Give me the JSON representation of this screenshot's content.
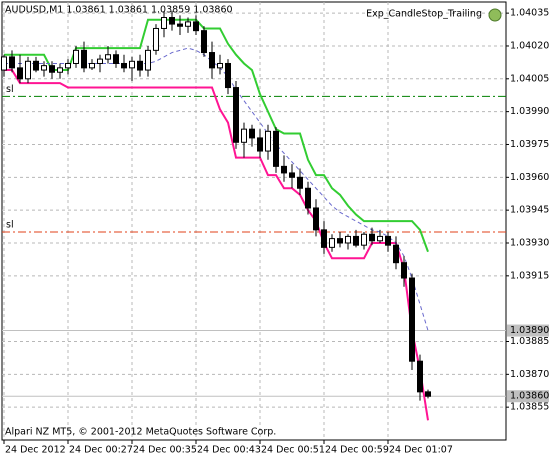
{
  "chart_data": {
    "type": "candlestick",
    "title": "AUDUSD,M1  1.03861 1.03861 1.03859 1.03860",
    "subtitle": "Exp_CandleStop_Trailing",
    "footer": "Alpari NZ MT5, © 2001-2012 MetaQuotes Software Corp.",
    "grid": true,
    "ylim": [
      1.0384,
      1.04041
    ],
    "yticks": [
      1.04035,
      {
        "value": 1.0402,
        "label": "1.04020"
      },
      1.04005,
      {
        "value": 1.0399,
        "label": "1.03990"
      },
      1.03975,
      {
        "value": 1.0396,
        "label": "1.03960"
      },
      1.03945,
      {
        "value": 1.0393,
        "label": "1.03930"
      },
      1.03915,
      1.03885,
      {
        "value": 1.0387,
        "label": "1.03870"
      },
      1.03855
    ],
    "categories": [
      "24 Dec 2012",
      null,
      null,
      null,
      null,
      null,
      null,
      null,
      "24 Dec 00:27",
      null,
      null,
      null,
      null,
      null,
      null,
      null,
      "24 Dec 00:35",
      null,
      null,
      null,
      null,
      null,
      null,
      null,
      "24 Dec 00:43",
      null,
      null,
      null,
      null,
      null,
      null,
      null,
      "24 Dec 00:51",
      null,
      null,
      null,
      null,
      null,
      null,
      null,
      "24 Dec 00:59",
      null,
      null,
      null,
      null,
      null,
      null,
      null,
      "24 Dec 01:07",
      null,
      null,
      null,
      null,
      null
    ],
    "open": [
      1.04009,
      1.04015,
      1.0401,
      1.04005,
      1.04013,
      1.04009,
      1.04011,
      1.04008,
      1.0401,
      1.04012,
      1.04018,
      1.0401,
      1.04012,
      1.04014,
      1.04016,
      1.04012,
      1.0401,
      1.04013,
      1.04009,
      1.04018,
      1.04028,
      1.04033,
      1.0403,
      1.04029,
      1.04031,
      1.04027,
      1.04017,
      1.0401,
      1.04012,
      1.04001,
      1.03976,
      1.03982,
      1.03978,
      1.03972,
      1.03981,
      1.03965,
      1.03962,
      1.0396,
      1.03955,
      1.03946,
      1.03936,
      1.03928,
      1.03932,
      1.0393,
      1.03933,
      1.03929,
      1.03934,
      1.03931,
      1.03933,
      1.03929,
      1.03921,
      1.03914,
      1.03876,
      1.03862
    ],
    "high": [
      1.04016,
      1.04018,
      1.04016,
      1.04015,
      1.04015,
      1.04013,
      1.04013,
      1.04012,
      1.04014,
      1.0402,
      1.04022,
      1.04014,
      1.04016,
      1.0402,
      1.04018,
      1.04016,
      1.04015,
      1.04016,
      1.0402,
      1.0403,
      1.04036,
      1.04036,
      1.04034,
      1.04033,
      1.04034,
      1.04029,
      1.04022,
      1.04016,
      1.04014,
      1.04004,
      1.03985,
      1.03984,
      1.03982,
      1.03984,
      1.03983,
      1.0397,
      1.03966,
      1.03964,
      1.03958,
      1.0395,
      1.0394,
      1.03934,
      1.03935,
      1.03934,
      1.03936,
      1.03935,
      1.03937,
      1.03936,
      1.03935,
      1.03933,
      1.03924,
      1.03916,
      1.03879,
      1.03863
    ],
    "low": [
      1.04006,
      1.04008,
      1.04003,
      1.04003,
      1.04008,
      1.04006,
      1.04005,
      1.04005,
      1.04007,
      1.0401,
      1.04008,
      1.04009,
      1.04008,
      1.04012,
      1.0401,
      1.04008,
      1.04004,
      1.04006,
      1.04006,
      1.04016,
      1.04024,
      1.04027,
      1.04025,
      1.04026,
      1.04025,
      1.04015,
      1.04005,
      1.04007,
      1.03998,
      1.03973,
      1.03969,
      1.03974,
      1.03969,
      1.03968,
      1.03962,
      1.03958,
      1.03955,
      1.03952,
      1.03943,
      1.03933,
      1.03925,
      1.03926,
      1.03928,
      1.03927,
      1.03928,
      1.03927,
      1.03929,
      1.0393,
      1.03926,
      1.03918,
      1.0391,
      1.03872,
      1.03858,
      1.03859
    ],
    "close": [
      1.04015,
      1.0401,
      1.04005,
      1.04013,
      1.04009,
      1.04011,
      1.04008,
      1.0401,
      1.04012,
      1.04018,
      1.0401,
      1.04012,
      1.04014,
      1.04016,
      1.04012,
      1.0401,
      1.04013,
      1.04009,
      1.04018,
      1.04028,
      1.04033,
      1.0403,
      1.04029,
      1.04031,
      1.04027,
      1.04017,
      1.0401,
      1.04012,
      1.04001,
      1.03976,
      1.03982,
      1.03978,
      1.03972,
      1.03981,
      1.03965,
      1.03962,
      1.0396,
      1.03955,
      1.03946,
      1.03936,
      1.03928,
      1.03932,
      1.0393,
      1.03933,
      1.03929,
      1.03934,
      1.03931,
      1.03933,
      1.03929,
      1.03921,
      1.03914,
      1.03876,
      1.03862,
      1.0386
    ],
    "series": [
      {
        "color": "#32cd32",
        "width": 2,
        "values": [
          1.04016,
          1.04016,
          1.04016,
          1.04016,
          1.04016,
          1.04016,
          1.04009,
          1.04009,
          1.04009,
          1.04019,
          1.04019,
          1.04019,
          1.04019,
          1.04019,
          1.04019,
          1.04019,
          1.04019,
          1.04019,
          1.04032,
          1.04032,
          1.04032,
          1.04032,
          1.04032,
          1.04032,
          1.04032,
          1.04028,
          1.04028,
          1.04028,
          1.04021,
          1.04016,
          1.04012,
          1.04009,
          1.03998,
          1.0399,
          1.03982,
          1.0398,
          1.0398,
          1.0398,
          1.03968,
          1.03961,
          1.03961,
          1.03955,
          1.03952,
          1.03947,
          1.03943,
          1.0394,
          1.0394,
          1.0394,
          1.0394,
          1.0394,
          1.0394,
          1.0394,
          1.03936,
          1.03926
        ]
      },
      {
        "color": "#ff1493",
        "width": 2,
        "values": [
          1.04009,
          1.04009,
          1.04003,
          1.04003,
          1.04003,
          1.04003,
          1.04003,
          1.04003,
          1.04001,
          1.04001,
          1.04001,
          1.04001,
          1.04001,
          1.04001,
          1.04001,
          1.04001,
          1.04001,
          1.04001,
          1.04001,
          1.04001,
          1.04001,
          1.04001,
          1.04001,
          1.04001,
          1.04001,
          1.04001,
          1.04001,
          1.03991,
          1.03985,
          1.03969,
          1.03969,
          1.03969,
          1.03969,
          1.03961,
          1.03961,
          1.03955,
          1.03955,
          1.03952,
          1.03945,
          1.0394,
          1.0393,
          1.03923,
          1.03923,
          1.03923,
          1.03923,
          1.03923,
          1.0393,
          1.0393,
          1.0393,
          1.0393,
          1.03918,
          1.0389,
          1.03872,
          1.03849
        ]
      },
      {
        "color": "#6a6acd",
        "width": 1,
        "dash": true,
        "values": [
          1.04012,
          1.04012,
          1.04012,
          1.04012,
          1.04012,
          1.04012,
          1.04012,
          1.04012,
          1.04012,
          1.04012,
          1.04012,
          1.04012,
          1.04012,
          1.04012,
          1.04012,
          1.04012,
          1.04012,
          1.04012,
          1.04012,
          1.04013,
          1.04015,
          1.04017,
          1.04018,
          1.04019,
          1.04018,
          1.04016,
          1.04013,
          1.0401,
          1.04006,
          1.04,
          1.03995,
          1.0399,
          1.03985,
          1.0398,
          1.03975,
          1.03971,
          1.03967,
          1.03963,
          1.03959,
          1.03955,
          1.03951,
          1.03947,
          1.03944,
          1.03942,
          1.0394,
          1.03938,
          1.03936,
          1.03935,
          1.03933,
          1.0393,
          1.03924,
          1.03914,
          1.03902,
          1.0389
        ]
      }
    ],
    "levels": [
      {
        "label": "sl",
        "value": 1.03997,
        "color": "#008000"
      },
      {
        "label": "sl",
        "value": 1.03935,
        "color": "#e0401a"
      }
    ],
    "price_labels": [
      {
        "value": 1.0389,
        "label": "1.03890"
      },
      {
        "value": 1.0386,
        "label": "1.03860"
      }
    ]
  }
}
